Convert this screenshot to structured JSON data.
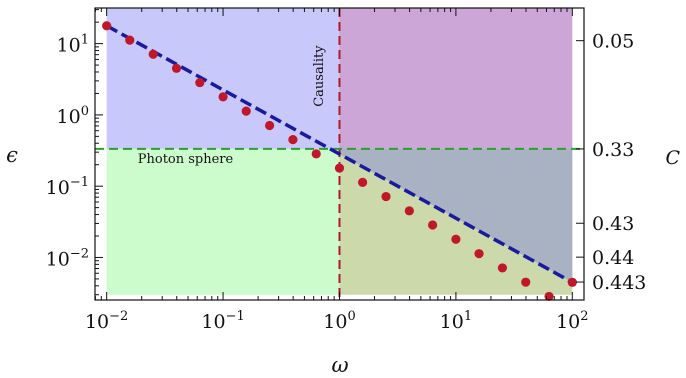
{
  "chart_data": {
    "type": "scatter",
    "xlabel": "ω",
    "ylabel": "ϵ",
    "right_axis_label": "C",
    "x_scale": "log",
    "y_scale": "log",
    "xlim": [
      0.00794,
      126
    ],
    "ylim": [
      0.00253,
      31.6
    ],
    "x_ticks": [
      {
        "value": 0.01,
        "base": "10",
        "exp": "−2"
      },
      {
        "value": 0.1,
        "base": "10",
        "exp": "−1"
      },
      {
        "value": 1,
        "base": "10",
        "exp": "0"
      },
      {
        "value": 10,
        "base": "10",
        "exp": "1"
      },
      {
        "value": 100,
        "base": "10",
        "exp": "2"
      }
    ],
    "y_ticks": [
      {
        "value": 0.01,
        "base": "10",
        "exp": "−2"
      },
      {
        "value": 0.1,
        "base": "10",
        "exp": "−1"
      },
      {
        "value": 1,
        "base": "10",
        "exp": "0"
      },
      {
        "value": 10,
        "base": "10",
        "exp": "1"
      }
    ],
    "right_ticks": [
      {
        "epsilon": 11.0,
        "label": "0.05"
      },
      {
        "epsilon": 0.333,
        "label": "0.33"
      },
      {
        "epsilon": 0.0302,
        "label": "0.43"
      },
      {
        "epsilon": 0.0101,
        "label": "0.44"
      },
      {
        "epsilon": 0.00452,
        "label": "0.443"
      }
    ],
    "regions": [
      {
        "label": "",
        "x_range": [
          0.01,
          1
        ],
        "y_range": [
          0.333,
          31.6
        ],
        "color": "#c8c8fa"
      },
      {
        "label": "",
        "x_range": [
          1,
          100
        ],
        "y_range": [
          0.333,
          31.6
        ],
        "color": "#cba6d6"
      },
      {
        "label": "",
        "x_range": [
          0.01,
          1
        ],
        "y_range": [
          0.003,
          0.333
        ],
        "color": "#ccfccc"
      },
      {
        "label": "",
        "x_range": [
          1,
          100
        ],
        "y_range": [
          0.003,
          0.333
        ],
        "color": "#ccd9aa"
      },
      {
        "label": "",
        "x_range": [
          1,
          100
        ],
        "y_range": [
          0.003,
          0.333
        ],
        "color": "#a8b2c2",
        "above_line": true
      }
    ],
    "annotations": [
      {
        "text": "Causality",
        "x": 0.72,
        "y": 1.3,
        "rotation": -90
      },
      {
        "text": "Photon sphere",
        "x": 0.0185,
        "y": 0.21
      }
    ],
    "reference_lines": [
      {
        "orientation": "vertical",
        "value": 1,
        "color": "#b2182b",
        "style": "dashed"
      },
      {
        "orientation": "horizontal",
        "value": 0.333,
        "color": "#2ca02c",
        "style": "dashed"
      }
    ],
    "fit_line": {
      "color": "#1a1aa0",
      "style": "dashed",
      "x": [
        0.01,
        100
      ],
      "y": [
        17.8,
        0.00448
      ]
    },
    "points": {
      "color": "#c0182a",
      "x": [
        0.01,
        0.0158,
        0.0251,
        0.0398,
        0.0631,
        0.1,
        0.158,
        0.251,
        0.398,
        0.631,
        1.0,
        1.58,
        2.51,
        3.98,
        6.31,
        10.0,
        15.8,
        25.1,
        39.8,
        63.1,
        100.0
      ],
      "y": [
        17.8,
        11.2,
        7.1,
        4.5,
        2.84,
        1.79,
        1.13,
        0.71,
        0.45,
        0.284,
        0.179,
        0.113,
        0.0715,
        0.0451,
        0.0285,
        0.018,
        0.0113,
        0.00713,
        0.0045,
        0.00284,
        0.00448
      ]
    }
  }
}
